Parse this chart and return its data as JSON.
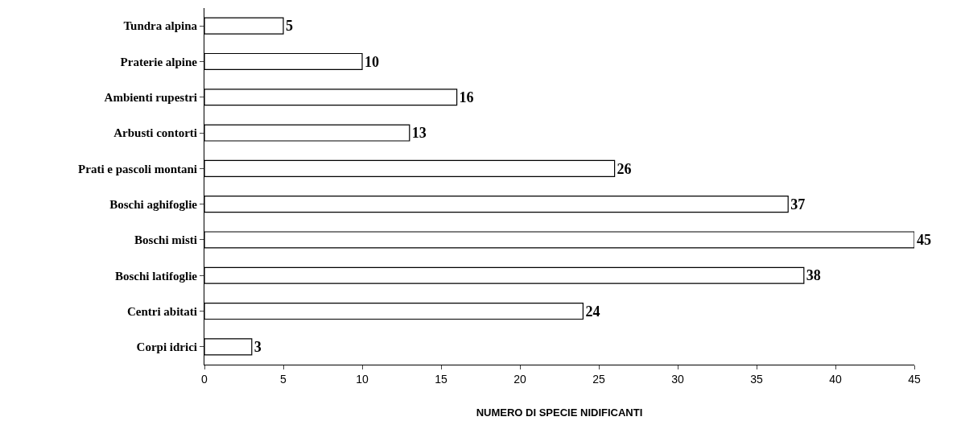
{
  "chart_data": {
    "type": "bar",
    "orientation": "horizontal",
    "xlabel": "NUMERO DI SPECIE NIDIFICANTI",
    "categories": [
      "Tundra alpina",
      "Praterie alpine",
      "Ambienti rupestri",
      "Arbusti contorti",
      "Prati e pascoli montani",
      "Boschi aghifoglie",
      "Boschi misti",
      "Boschi latifoglie",
      "Centri abitati",
      "Corpi idrici"
    ],
    "values": [
      5,
      10,
      16,
      13,
      26,
      37,
      45,
      38,
      24,
      3
    ],
    "color": "#ffffff",
    "data_labels": true,
    "xlim": [
      0,
      45
    ],
    "xticks": [
      0,
      5,
      10,
      15,
      20,
      25,
      30,
      35,
      40,
      45
    ]
  }
}
